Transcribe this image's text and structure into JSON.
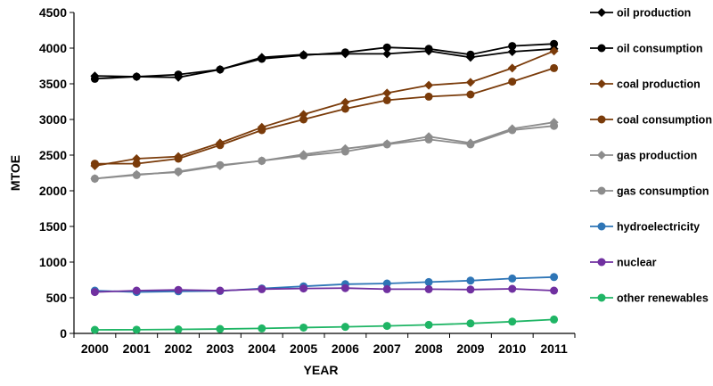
{
  "chart_data": {
    "type": "line",
    "title": "",
    "xlabel": "YEAR",
    "ylabel": "MTOE",
    "ylim": [
      0,
      4500
    ],
    "yticks": [
      0,
      500,
      1000,
      1500,
      2000,
      2500,
      3000,
      3500,
      4000,
      4500
    ],
    "grid": false,
    "legend_position": "right",
    "categories": [
      "2000",
      "2001",
      "2002",
      "2003",
      "2004",
      "2005",
      "2006",
      "2007",
      "2008",
      "2009",
      "2010",
      "2011"
    ],
    "series": [
      {
        "name": "oil production",
        "color": "#000000",
        "marker": "diamond",
        "values": [
          3610,
          3600,
          3590,
          3700,
          3870,
          3910,
          3920,
          3920,
          3960,
          3870,
          3950,
          3990
        ]
      },
      {
        "name": "oil consumption",
        "color": "#000000",
        "marker": "circle",
        "values": [
          3570,
          3600,
          3630,
          3700,
          3850,
          3900,
          3940,
          4010,
          3990,
          3910,
          4030,
          4060
        ]
      },
      {
        "name": "coal production",
        "color": "#7a3b0a",
        "marker": "diamond",
        "values": [
          2350,
          2450,
          2480,
          2670,
          2890,
          3070,
          3240,
          3370,
          3480,
          3520,
          3720,
          3960
        ]
      },
      {
        "name": "coal consumption",
        "color": "#7a3b0a",
        "marker": "circle",
        "values": [
          2380,
          2380,
          2450,
          2640,
          2850,
          3000,
          3150,
          3270,
          3320,
          3350,
          3530,
          3720
        ]
      },
      {
        "name": "gas production",
        "color": "#8c8c8c",
        "marker": "diamond",
        "values": [
          2170,
          2230,
          2260,
          2350,
          2420,
          2510,
          2590,
          2660,
          2760,
          2670,
          2870,
          2960
        ]
      },
      {
        "name": "gas consumption",
        "color": "#8c8c8c",
        "marker": "circle",
        "values": [
          2170,
          2220,
          2270,
          2360,
          2420,
          2490,
          2550,
          2650,
          2720,
          2650,
          2850,
          2910
        ]
      },
      {
        "name": "hydroelectricity",
        "color": "#2e75b6",
        "marker": "circle",
        "values": [
          600,
          580,
          590,
          595,
          630,
          660,
          690,
          700,
          720,
          740,
          770,
          790
        ]
      },
      {
        "name": "nuclear",
        "color": "#7030a0",
        "marker": "circle",
        "values": [
          580,
          600,
          610,
          600,
          620,
          630,
          635,
          620,
          620,
          615,
          625,
          600
        ]
      },
      {
        "name": "other renewables",
        "color": "#1fb565",
        "marker": "circle",
        "values": [
          50,
          52,
          56,
          62,
          70,
          82,
          92,
          105,
          120,
          140,
          165,
          195
        ]
      }
    ]
  }
}
